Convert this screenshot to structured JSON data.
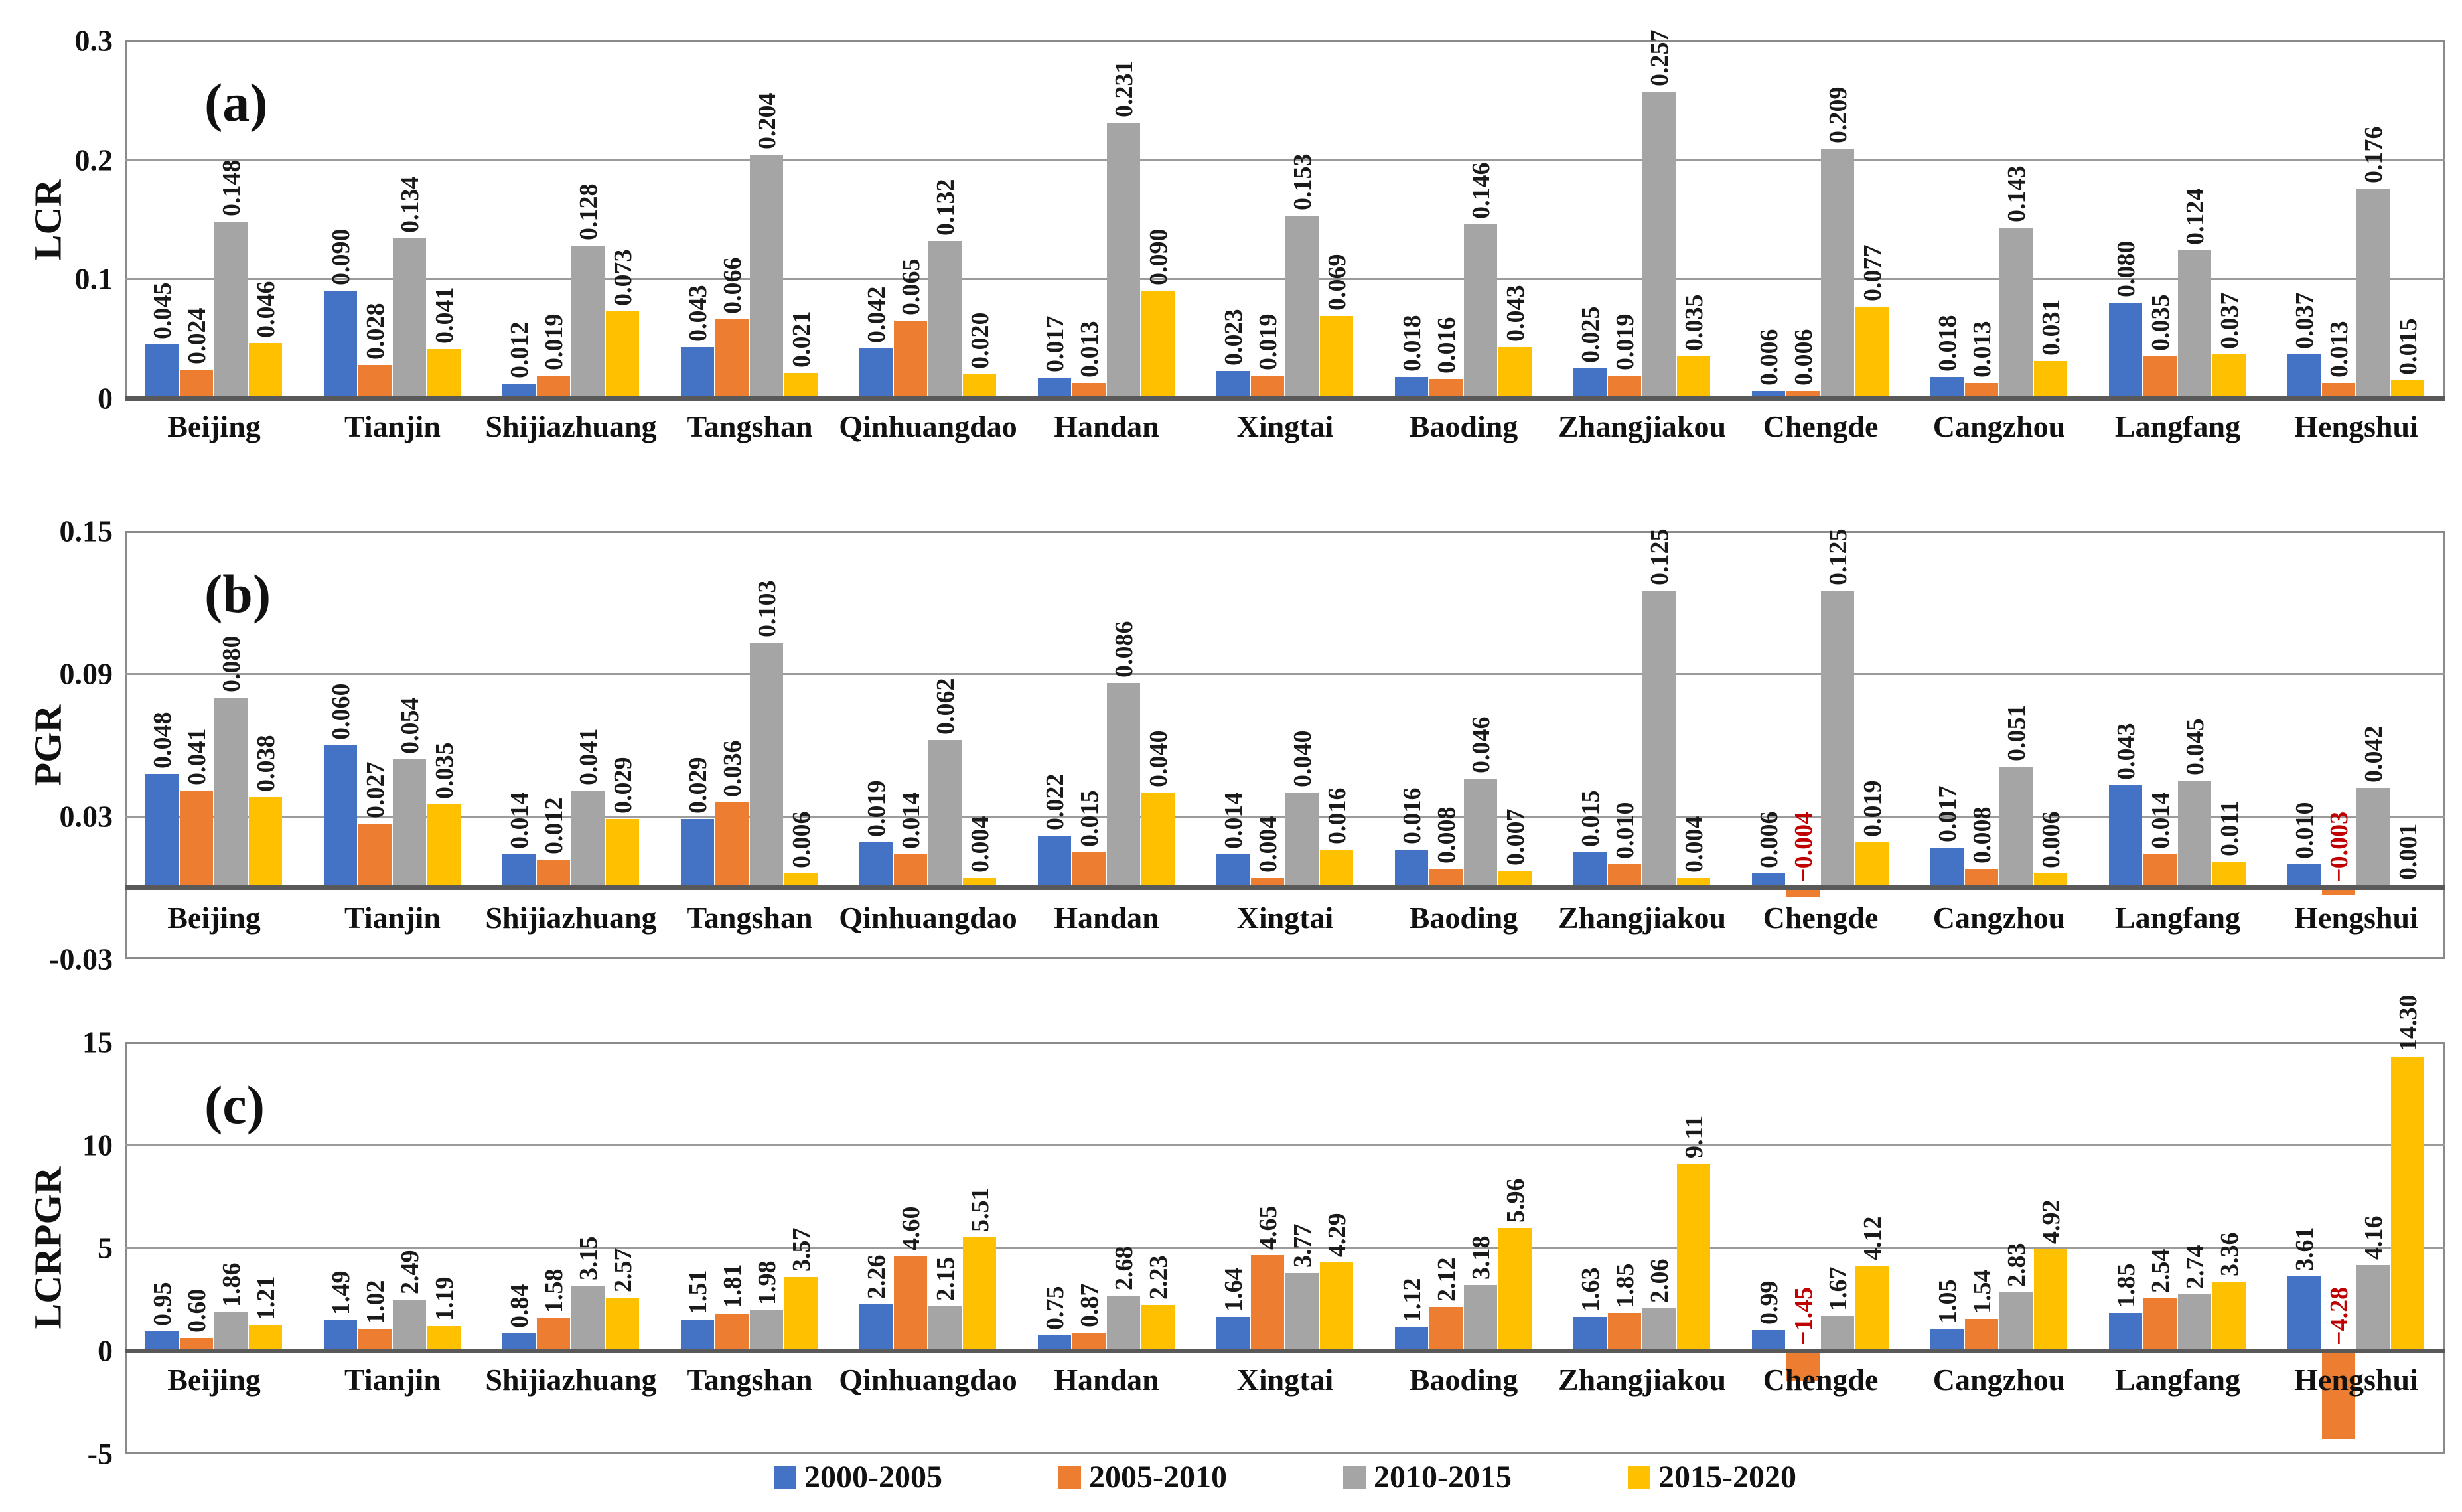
{
  "figure": {
    "background": "#ffffff",
    "description": "Three stacked grouped-bar panels (a) LCR, (b) PGR, (c) LCRPGR for 13 cities over four periods"
  },
  "colors": {
    "series_2000_2005": "#4472C4",
    "series_2005_2010": "#ED7D31",
    "series_2010_2015": "#A5A5A5",
    "series_2015_2020": "#FFC000",
    "negative_label": "#C00000",
    "gridline": "#9B9B9B",
    "axis_line": "#595959",
    "plot_border": "#8A8A8A"
  },
  "legend": {
    "position": "bottom",
    "items": [
      {
        "label": "2000-2005",
        "color": "#4472C4"
      },
      {
        "label": "2005-2010",
        "color": "#ED7D31"
      },
      {
        "label": "2010-2015",
        "color": "#A5A5A5"
      },
      {
        "label": "2015-2020",
        "color": "#FFC000"
      }
    ]
  },
  "chart_data": [
    {
      "id": "a",
      "type": "bar",
      "panel_label": "(a)",
      "title": "",
      "xlabel": "",
      "ylabel": "LCR",
      "ymin": 0,
      "ymax": 0.3,
      "grid": true,
      "gridlines": [
        0.2,
        0.1
      ],
      "ticks": [
        {
          "v": 0.3,
          "label": "0.3"
        },
        {
          "v": 0.2,
          "label": "0.2"
        },
        {
          "v": 0.1,
          "label": "0.1"
        },
        {
          "v": 0,
          "label": "0"
        }
      ],
      "categories": [
        "Beijing",
        "Tianjin",
        "Shijiazhuang",
        "Tangshan",
        "Qinhuangdao",
        "Handan",
        "Xingtai",
        "Baoding",
        "Zhangjiakou",
        "Chengde",
        "Cangzhou",
        "Langfang",
        "Hengshui"
      ],
      "series": [
        {
          "name": "2000-2005",
          "values": [
            0.045,
            0.09,
            0.012,
            0.043,
            0.042,
            0.017,
            0.023,
            0.018,
            0.025,
            0.006,
            0.018,
            0.08,
            0.037
          ],
          "labels": [
            "0.045",
            "0.090",
            "0.012",
            "0.043",
            "0.042",
            "0.017",
            "0.023",
            "0.018",
            "0.025",
            "0.006",
            "0.018",
            "0.080",
            "0.037"
          ]
        },
        {
          "name": "2005-2010",
          "values": [
            0.024,
            0.028,
            0.019,
            0.066,
            0.065,
            0.013,
            0.019,
            0.016,
            0.019,
            0.006,
            0.013,
            0.035,
            0.013
          ],
          "labels": [
            "0.024",
            "0.028",
            "0.019",
            "0.066",
            "0.065",
            "0.013",
            "0.019",
            "0.016",
            "0.019",
            "0.006",
            "0.013",
            "0.035",
            "0.013"
          ]
        },
        {
          "name": "2010-2015",
          "values": [
            0.148,
            0.134,
            0.128,
            0.204,
            0.132,
            0.231,
            0.153,
            0.146,
            0.257,
            0.209,
            0.143,
            0.124,
            0.176
          ],
          "labels": [
            "0.148",
            "0.134",
            "0.128",
            "0.204",
            "0.132",
            "0.231",
            "0.153",
            "0.146",
            "0.257",
            "0.209",
            "0.143",
            "0.124",
            "0.176"
          ]
        },
        {
          "name": "2015-2020",
          "values": [
            0.046,
            0.041,
            0.073,
            0.021,
            0.02,
            0.09,
            0.069,
            0.043,
            0.035,
            0.077,
            0.031,
            0.037,
            0.015
          ],
          "labels": [
            "0.046",
            "0.041",
            "0.073",
            "0.021",
            "0.020",
            "0.090",
            "0.069",
            "0.043",
            "0.035",
            "0.077",
            "0.031",
            "0.037",
            "0.015"
          ]
        }
      ]
    },
    {
      "id": "b",
      "type": "bar",
      "panel_label": "(b)",
      "title": "",
      "xlabel": "",
      "ylabel": "PGR",
      "ymin": -0.03,
      "ymax": 0.15,
      "grid": true,
      "gridlines": [
        0.09,
        0.03
      ],
      "ticks": [
        {
          "v": 0.15,
          "label": "0.15"
        },
        {
          "v": 0.09,
          "label": "0.09"
        },
        {
          "v": 0.03,
          "label": "0.03"
        },
        {
          "v": -0.03,
          "label": "-0.03"
        }
      ],
      "categories": [
        "Beijing",
        "Tianjin",
        "Shijiazhuang",
        "Tangshan",
        "Qinhuangdao",
        "Handan",
        "Xingtai",
        "Baoding",
        "Zhangjiakou",
        "Chengde",
        "Cangzhou",
        "Langfang",
        "Hengshui"
      ],
      "series": [
        {
          "name": "2000-2005",
          "values": [
            0.048,
            0.06,
            0.014,
            0.029,
            0.019,
            0.022,
            0.014,
            0.016,
            0.015,
            0.006,
            0.017,
            0.043,
            0.01
          ],
          "labels": [
            "0.048",
            "0.060",
            "0.014",
            "0.029",
            "0.019",
            "0.022",
            "0.014",
            "0.016",
            "0.015",
            "0.006",
            "0.017",
            "0.043",
            "0.010"
          ]
        },
        {
          "name": "2005-2010",
          "values": [
            0.041,
            0.027,
            0.012,
            0.036,
            0.014,
            0.015,
            0.004,
            0.008,
            0.01,
            -0.004,
            0.008,
            0.014,
            -0.003
          ],
          "labels": [
            "0.041",
            "0.027",
            "0.012",
            "0.036",
            "0.014",
            "0.015",
            "0.004",
            "0.008",
            "0.010",
            "-0.004",
            "0.008",
            "0.014",
            "-0.003"
          ]
        },
        {
          "name": "2010-2015",
          "values": [
            0.08,
            0.054,
            0.041,
            0.103,
            0.062,
            0.086,
            0.04,
            0.046,
            0.125,
            0.125,
            0.051,
            0.045,
            0.042
          ],
          "labels": [
            "0.080",
            "0.054",
            "0.041",
            "0.103",
            "0.062",
            "0.086",
            "0.040",
            "0.046",
            "0.125",
            "0.125",
            "0.051",
            "0.045",
            "0.042"
          ]
        },
        {
          "name": "2015-2020",
          "values": [
            0.038,
            0.035,
            0.029,
            0.006,
            0.004,
            0.04,
            0.016,
            0.007,
            0.004,
            0.019,
            0.006,
            0.011,
            0.001
          ],
          "labels": [
            "0.038",
            "0.035",
            "0.029",
            "0.006",
            "0.004",
            "0.040",
            "0.016",
            "0.007",
            "0.004",
            "0.019",
            "0.006",
            "0.011",
            "0.001"
          ]
        }
      ]
    },
    {
      "id": "c",
      "type": "bar",
      "panel_label": "(c)",
      "title": "",
      "xlabel": "",
      "ylabel": "LCRPGR",
      "ymin": -5,
      "ymax": 15,
      "grid": true,
      "gridlines": [
        10,
        5
      ],
      "ticks": [
        {
          "v": 15,
          "label": "15"
        },
        {
          "v": 10,
          "label": "10"
        },
        {
          "v": 5,
          "label": "5"
        },
        {
          "v": 0,
          "label": "0"
        },
        {
          "v": -5,
          "label": "-5"
        }
      ],
      "categories": [
        "Beijing",
        "Tianjin",
        "Shijiazhuang",
        "Tangshan",
        "Qinhuangdao",
        "Handan",
        "Xingtai",
        "Baoding",
        "Zhangjiakou",
        "Chengde",
        "Cangzhou",
        "Langfang",
        "Hengshui"
      ],
      "series": [
        {
          "name": "2000-2005",
          "values": [
            0.95,
            1.49,
            0.84,
            1.51,
            2.26,
            0.75,
            1.64,
            1.12,
            1.63,
            0.99,
            1.05,
            1.85,
            3.61
          ],
          "labels": [
            "0.95",
            "1.49",
            "0.84",
            "1.51",
            "2.26",
            "0.75",
            "1.64",
            "1.12",
            "1.63",
            "0.99",
            "1.05",
            "1.85",
            "3.61"
          ]
        },
        {
          "name": "2005-2010",
          "values": [
            0.6,
            1.02,
            1.58,
            1.81,
            4.6,
            0.87,
            4.65,
            2.12,
            1.85,
            -1.45,
            1.54,
            2.54,
            -4.28
          ],
          "labels": [
            "0.60",
            "1.02",
            "1.58",
            "1.81",
            "4.60",
            "0.87",
            "4.65",
            "2.12",
            "1.85",
            "-1.45",
            "1.54",
            "2.54",
            "-4.28"
          ]
        },
        {
          "name": "2010-2015",
          "values": [
            1.86,
            2.49,
            3.15,
            1.98,
            2.15,
            2.68,
            3.77,
            3.18,
            2.06,
            1.67,
            2.83,
            2.74,
            4.16
          ],
          "labels": [
            "1.86",
            "2.49",
            "3.15",
            "1.98",
            "2.15",
            "2.68",
            "3.77",
            "3.18",
            "2.06",
            "1.67",
            "2.83",
            "2.74",
            "4.16"
          ]
        },
        {
          "name": "2015-2020",
          "values": [
            1.21,
            1.19,
            2.57,
            3.57,
            5.51,
            2.23,
            4.29,
            5.96,
            9.11,
            4.12,
            4.92,
            3.36,
            14.3
          ],
          "labels": [
            "1.21",
            "1.19",
            "2.57",
            "3.57",
            "5.51",
            "2.23",
            "4.29",
            "5.96",
            "9.11",
            "4.12",
            "4.92",
            "3.36",
            "14.30"
          ]
        }
      ]
    }
  ]
}
